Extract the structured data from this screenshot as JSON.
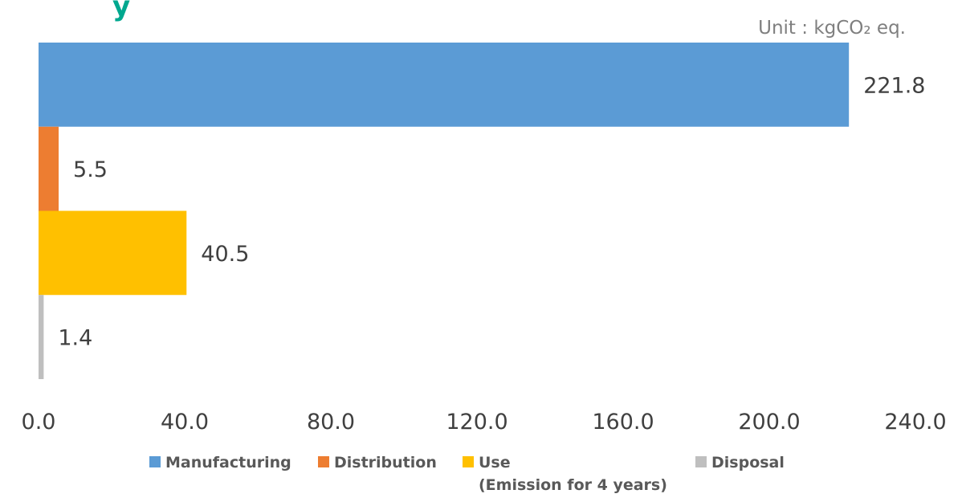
{
  "title_fragment": "y",
  "unit": "Unit : kgCO₂ eq.",
  "chart_data": {
    "type": "bar",
    "orientation": "horizontal",
    "categories": [
      "Manufacturing",
      "Distribution",
      "Use",
      "Disposal"
    ],
    "values": [
      221.8,
      5.5,
      40.5,
      1.4
    ],
    "value_labels": [
      "221.8",
      "5.5",
      "40.5",
      "1.4"
    ],
    "colors": [
      "#5b9bd5",
      "#ed7d31",
      "#ffc000",
      "#bfbfbf"
    ],
    "xlim": [
      0,
      240
    ],
    "x_ticks": [
      0,
      40,
      80,
      120,
      160,
      200,
      240
    ],
    "x_tick_labels": [
      "0.0",
      "40.0",
      "80.0",
      "120.0",
      "160.0",
      "200.0",
      "240.0"
    ],
    "grid": false,
    "legend_position": "bottom",
    "legend": [
      {
        "label": "Manufacturing",
        "sublabel": "",
        "color": "#5b9bd5"
      },
      {
        "label": "Distribution",
        "sublabel": "",
        "color": "#ed7d31"
      },
      {
        "label": "Use",
        "sublabel": "(Emission for 4 years)",
        "color": "#ffc000"
      },
      {
        "label": "Disposal",
        "sublabel": "",
        "color": "#bfbfbf"
      }
    ]
  }
}
